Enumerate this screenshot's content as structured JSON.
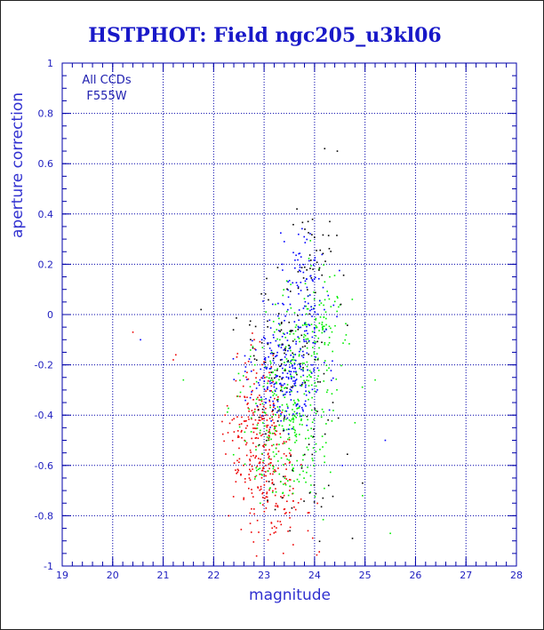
{
  "chart_data": {
    "type": "scatter",
    "title": "HSTPHOT: Field ngc205_u3kl06",
    "xlabel": "magnitude",
    "ylabel": "aperture correction",
    "xlim": [
      19,
      28
    ],
    "ylim": [
      -1,
      1
    ],
    "x_ticks": [
      "19",
      "20",
      "21",
      "22",
      "23",
      "24",
      "25",
      "26",
      "27",
      "28"
    ],
    "y_ticks": [
      "-1",
      "-0.8",
      "-0.6",
      "-0.4",
      "-0.2",
      "0",
      "0.2",
      "0.4",
      "0.6",
      "0.8",
      "1"
    ],
    "grid": true,
    "annotations": [
      "All CCDs",
      "F555W"
    ],
    "colors": {
      "frame": "#0000aa",
      "grid": "#0000aa",
      "title": "#1818c8",
      "label": "#3030d0",
      "series_black": "#000000",
      "series_blue": "#0000ff",
      "series_green": "#00ee00",
      "series_red": "#ee0000"
    },
    "series": [
      {
        "color": "series_red",
        "clusters": [
          {
            "n": 230,
            "cx": 22.85,
            "cy": -0.46,
            "sx": 0.32,
            "sy": 0.14
          },
          {
            "n": 90,
            "cx": 23.1,
            "cy": -0.66,
            "sx": 0.3,
            "sy": 0.1
          },
          {
            "n": 30,
            "cx": 23.4,
            "cy": -0.82,
            "sx": 0.35,
            "sy": 0.06
          }
        ],
        "points": [
          [
            20.4,
            -0.07
          ],
          [
            21.25,
            -0.16
          ],
          [
            21.2,
            -0.18
          ],
          [
            22.3,
            -0.8
          ],
          [
            22.85,
            -0.96
          ]
        ]
      },
      {
        "color": "series_green",
        "clusters": [
          {
            "n": 260,
            "cx": 23.5,
            "cy": -0.34,
            "sx": 0.45,
            "sy": 0.15
          },
          {
            "n": 90,
            "cx": 24.0,
            "cy": -0.12,
            "sx": 0.3,
            "sy": 0.12
          },
          {
            "n": 60,
            "cx": 23.3,
            "cy": -0.58,
            "sx": 0.3,
            "sy": 0.1
          },
          {
            "n": 45,
            "cx": 24.1,
            "cy": 0.02,
            "sx": 0.32,
            "sy": 0.09
          }
        ],
        "points": [
          [
            21.4,
            -0.26
          ],
          [
            25.2,
            -0.26
          ],
          [
            25.5,
            -0.87
          ],
          [
            24.95,
            -0.72
          ],
          [
            24.3,
            0.15
          ],
          [
            24.8,
            -0.43
          ]
        ]
      },
      {
        "color": "series_blue",
        "clusters": [
          {
            "n": 230,
            "cx": 23.45,
            "cy": -0.24,
            "sx": 0.4,
            "sy": 0.11
          },
          {
            "n": 70,
            "cx": 23.75,
            "cy": 0.02,
            "sx": 0.3,
            "sy": 0.1
          },
          {
            "n": 35,
            "cx": 23.8,
            "cy": 0.2,
            "sx": 0.2,
            "sy": 0.07
          }
        ],
        "points": [
          [
            20.55,
            -0.1
          ],
          [
            25.4,
            -0.5
          ],
          [
            24.55,
            -0.6
          ]
        ]
      },
      {
        "color": "series_black",
        "clusters": [
          {
            "n": 90,
            "cx": 23.5,
            "cy": -0.12,
            "sx": 0.45,
            "sy": 0.14
          },
          {
            "n": 30,
            "cx": 24.0,
            "cy": 0.25,
            "sx": 0.25,
            "sy": 0.08
          },
          {
            "n": 40,
            "cx": 23.8,
            "cy": -0.62,
            "sx": 0.45,
            "sy": 0.14
          }
        ],
        "points": [
          [
            24.2,
            0.66
          ],
          [
            24.45,
            0.65
          ],
          [
            23.65,
            0.42
          ],
          [
            24.3,
            0.37
          ],
          [
            21.75,
            0.02
          ],
          [
            24.95,
            -0.67
          ],
          [
            24.75,
            -0.89
          ]
        ]
      }
    ]
  }
}
